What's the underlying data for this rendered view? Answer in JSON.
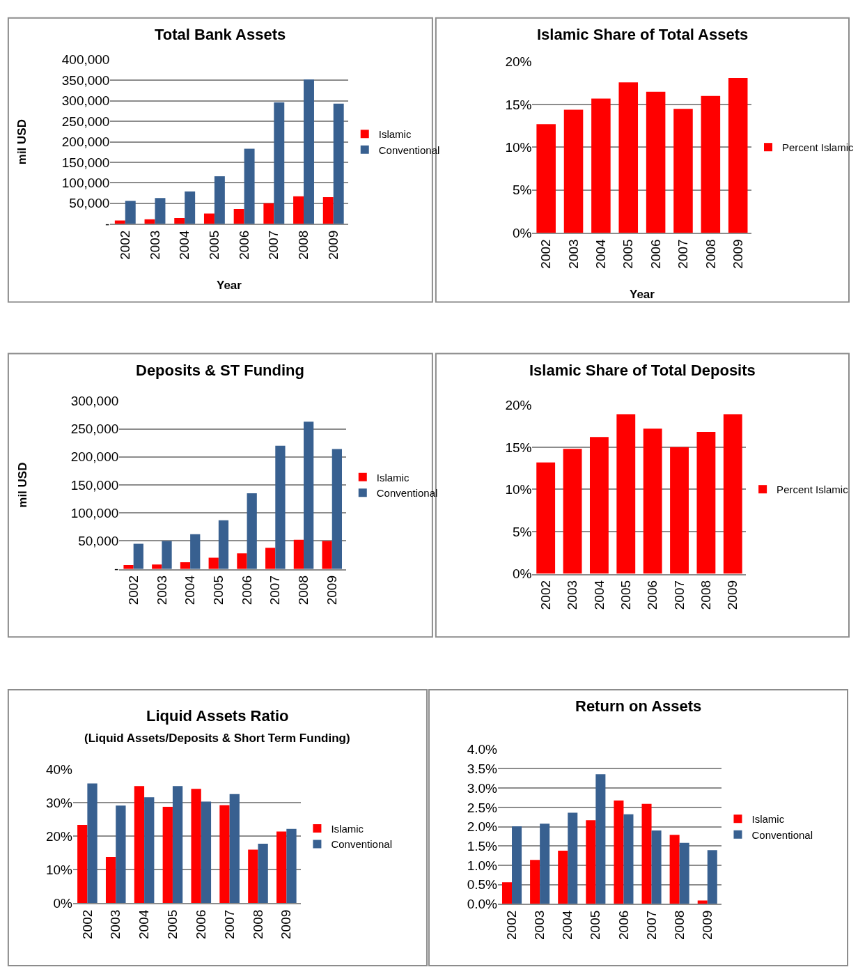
{
  "chart_data": [
    {
      "type": "bar",
      "title": "Total Bank Assets",
      "xlabel": "Year",
      "ylabel": "mil USD",
      "categories": [
        "2002",
        "2003",
        "2004",
        "2005",
        "2006",
        "2007",
        "2008",
        "2009"
      ],
      "series": [
        {
          "name": "Islamic",
          "color": "#ff0000",
          "values": [
            8000,
            11000,
            14000,
            25000,
            36000,
            50000,
            67000,
            65000
          ]
        },
        {
          "name": "Conventional",
          "color": "#386090",
          "values": [
            56000,
            63000,
            79000,
            116000,
            183000,
            296000,
            352000,
            293000
          ]
        }
      ],
      "ylim": [
        0,
        400000
      ],
      "yticks": [
        {
          "value": 0,
          "label": "-"
        },
        {
          "value": 50000,
          "label": "50,000"
        },
        {
          "value": 100000,
          "label": "100,000"
        },
        {
          "value": 150000,
          "label": "150,000"
        },
        {
          "value": 200000,
          "label": "200,000"
        },
        {
          "value": 250000,
          "label": "250,000"
        },
        {
          "value": 300000,
          "label": "300,000"
        },
        {
          "value": 350000,
          "label": "350,000"
        },
        {
          "value": 400000,
          "label": "400,000"
        }
      ],
      "grid": "y",
      "legend": "right"
    },
    {
      "type": "bar",
      "title": "Islamic Share of Total Assets",
      "xlabel": "Year",
      "categories": [
        "2002",
        "2003",
        "2004",
        "2005",
        "2006",
        "2007",
        "2008",
        "2009"
      ],
      "series": [
        {
          "name": "Percent Islamic",
          "color": "#ff0000",
          "values": [
            12.7,
            14.4,
            15.7,
            17.6,
            16.5,
            14.5,
            16.0,
            18.1
          ]
        }
      ],
      "ylim": [
        0,
        20
      ],
      "yticks": [
        {
          "value": 0,
          "label": "0%"
        },
        {
          "value": 5,
          "label": "5%"
        },
        {
          "value": 10,
          "label": "10%"
        },
        {
          "value": 15,
          "label": "15%"
        },
        {
          "value": 20,
          "label": "20%"
        }
      ],
      "grid": "y",
      "legend": "right"
    },
    {
      "type": "bar",
      "title": "Deposits & ST Funding",
      "ylabel": "mil USD",
      "categories": [
        "2002",
        "2003",
        "2004",
        "2005",
        "2006",
        "2007",
        "2008",
        "2009"
      ],
      "series": [
        {
          "name": "Islamic",
          "color": "#ff0000",
          "values": [
            7000,
            8000,
            12000,
            20000,
            28000,
            38000,
            52000,
            50000
          ]
        },
        {
          "name": "Conventional",
          "color": "#386090",
          "values": [
            45000,
            50000,
            62000,
            87000,
            135000,
            220000,
            263000,
            214000
          ]
        }
      ],
      "ylim": [
        0,
        300000
      ],
      "yticks": [
        {
          "value": 0,
          "label": "-"
        },
        {
          "value": 50000,
          "label": "50,000"
        },
        {
          "value": 100000,
          "label": "100,000"
        },
        {
          "value": 150000,
          "label": "150,000"
        },
        {
          "value": 200000,
          "label": "200,000"
        },
        {
          "value": 250000,
          "label": "250,000"
        },
        {
          "value": 300000,
          "label": "300,000"
        }
      ],
      "grid": "y",
      "legend": "right"
    },
    {
      "type": "bar",
      "title": "Islamic Share of Total Deposits",
      "categories": [
        "2002",
        "2003",
        "2004",
        "2005",
        "2006",
        "2007",
        "2008",
        "2009"
      ],
      "series": [
        {
          "name": "Percent Islamic",
          "color": "#ff0000",
          "values": [
            13.2,
            14.8,
            16.2,
            18.9,
            17.2,
            15.0,
            16.8,
            18.9
          ]
        }
      ],
      "ylim": [
        0,
        20
      ],
      "yticks": [
        {
          "value": 0,
          "label": "0%"
        },
        {
          "value": 5,
          "label": "5%"
        },
        {
          "value": 10,
          "label": "10%"
        },
        {
          "value": 15,
          "label": "15%"
        },
        {
          "value": 20,
          "label": "20%"
        }
      ],
      "grid": "y",
      "legend": "right"
    },
    {
      "type": "bar",
      "title": "Liquid Assets Ratio",
      "subtitle": "(Liquid Assets/Deposits & Short Term Funding)",
      "categories": [
        "2002",
        "2003",
        "2004",
        "2005",
        "2006",
        "2007",
        "2008",
        "2009"
      ],
      "series": [
        {
          "name": "Islamic",
          "color": "#ff0000",
          "values": [
            23.4,
            13.8,
            35.0,
            28.8,
            34.2,
            29.3,
            16.0,
            21.4
          ]
        },
        {
          "name": "Conventional",
          "color": "#386090",
          "values": [
            35.8,
            29.2,
            31.7,
            35.0,
            30.4,
            32.6,
            17.8,
            22.2
          ]
        }
      ],
      "ylim": [
        0,
        40
      ],
      "yticks": [
        {
          "value": 0,
          "label": "0%"
        },
        {
          "value": 10,
          "label": "10%"
        },
        {
          "value": 20,
          "label": "20%"
        },
        {
          "value": 30,
          "label": "30%"
        },
        {
          "value": 40,
          "label": "40%"
        }
      ],
      "grid": "y",
      "legend": "right"
    },
    {
      "type": "bar",
      "title": "Return on Assets",
      "categories": [
        "2002",
        "2003",
        "2004",
        "2005",
        "2006",
        "2007",
        "2008",
        "2009"
      ],
      "series": [
        {
          "name": "Islamic",
          "color": "#ff0000",
          "values": [
            0.56,
            1.14,
            1.38,
            2.17,
            2.68,
            2.59,
            1.79,
            0.09
          ]
        },
        {
          "name": "Conventional",
          "color": "#386090",
          "values": [
            2.01,
            2.08,
            2.36,
            3.36,
            2.32,
            1.9,
            1.58,
            1.39
          ]
        }
      ],
      "ylim": [
        0,
        4
      ],
      "yticks": [
        {
          "value": 0,
          "label": "0.0%"
        },
        {
          "value": 0.5,
          "label": "0.5%"
        },
        {
          "value": 1,
          "label": "1.0%"
        },
        {
          "value": 1.5,
          "label": "1.5%"
        },
        {
          "value": 2,
          "label": "2.0%"
        },
        {
          "value": 2.5,
          "label": "2.5%"
        },
        {
          "value": 3,
          "label": "3.0%"
        },
        {
          "value": 3.5,
          "label": "3.5%"
        },
        {
          "value": 4,
          "label": "4.0%"
        }
      ],
      "grid": "y",
      "legend": "right"
    }
  ]
}
